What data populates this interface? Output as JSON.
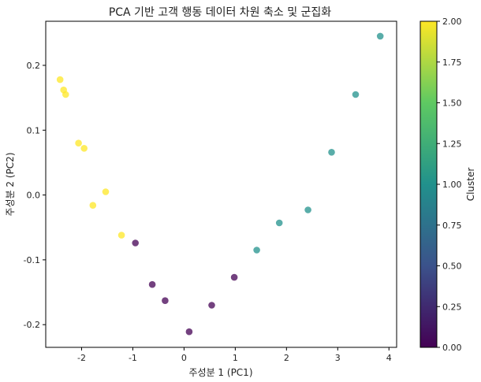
{
  "chart_data": {
    "type": "scatter",
    "title": "PCA 기반 고객 행동 데이터 차원 축소 및 군집화",
    "xlabel": "주성분 1 (PC1)",
    "ylabel": "주성분 2 (PC2)",
    "xlim": [
      -2.7,
      4.15
    ],
    "ylim": [
      -0.235,
      0.268
    ],
    "x_ticks": [
      -2,
      -1,
      0,
      1,
      2,
      3,
      4
    ],
    "x_tick_labels": [
      "-2",
      "-1",
      "0",
      "1",
      "2",
      "3",
      "4"
    ],
    "y_ticks": [
      -0.2,
      -0.1,
      0.0,
      0.1,
      0.2
    ],
    "y_tick_labels": [
      "-0.2",
      "-0.1",
      "0.0",
      "0.1",
      "0.2"
    ],
    "grid": false,
    "colorbar": {
      "label": "Cluster",
      "range": [
        0,
        2
      ],
      "ticks": [
        0,
        0.25,
        0.5,
        0.75,
        1.0,
        1.25,
        1.5,
        1.75,
        2.0
      ],
      "tick_labels": [
        "0.00",
        "0.25",
        "0.50",
        "0.75",
        "1.00",
        "1.25",
        "1.50",
        "1.75",
        "2.00"
      ],
      "colormap": [
        "#440154",
        "#3b528b",
        "#21918c",
        "#5ec962",
        "#fde725"
      ]
    },
    "points": [
      {
        "x": -2.42,
        "y": 0.178,
        "cluster": 2
      },
      {
        "x": -2.35,
        "y": 0.162,
        "cluster": 2
      },
      {
        "x": -2.31,
        "y": 0.155,
        "cluster": 2
      },
      {
        "x": -2.06,
        "y": 0.08,
        "cluster": 2
      },
      {
        "x": -1.95,
        "y": 0.072,
        "cluster": 2
      },
      {
        "x": -1.53,
        "y": 0.005,
        "cluster": 2
      },
      {
        "x": -1.78,
        "y": -0.016,
        "cluster": 2
      },
      {
        "x": -1.22,
        "y": -0.062,
        "cluster": 2
      },
      {
        "x": -0.95,
        "y": -0.074,
        "cluster": 0
      },
      {
        "x": -0.62,
        "y": -0.138,
        "cluster": 0
      },
      {
        "x": -0.37,
        "y": -0.163,
        "cluster": 0
      },
      {
        "x": 0.1,
        "y": -0.211,
        "cluster": 0
      },
      {
        "x": 0.54,
        "y": -0.17,
        "cluster": 0
      },
      {
        "x": 0.98,
        "y": -0.127,
        "cluster": 0
      },
      {
        "x": 1.42,
        "y": -0.085,
        "cluster": 1
      },
      {
        "x": 1.86,
        "y": -0.043,
        "cluster": 1
      },
      {
        "x": 2.42,
        "y": -0.023,
        "cluster": 1
      },
      {
        "x": 2.88,
        "y": 0.066,
        "cluster": 1
      },
      {
        "x": 3.35,
        "y": 0.155,
        "cluster": 1
      },
      {
        "x": 3.83,
        "y": 0.245,
        "cluster": 1
      }
    ]
  }
}
